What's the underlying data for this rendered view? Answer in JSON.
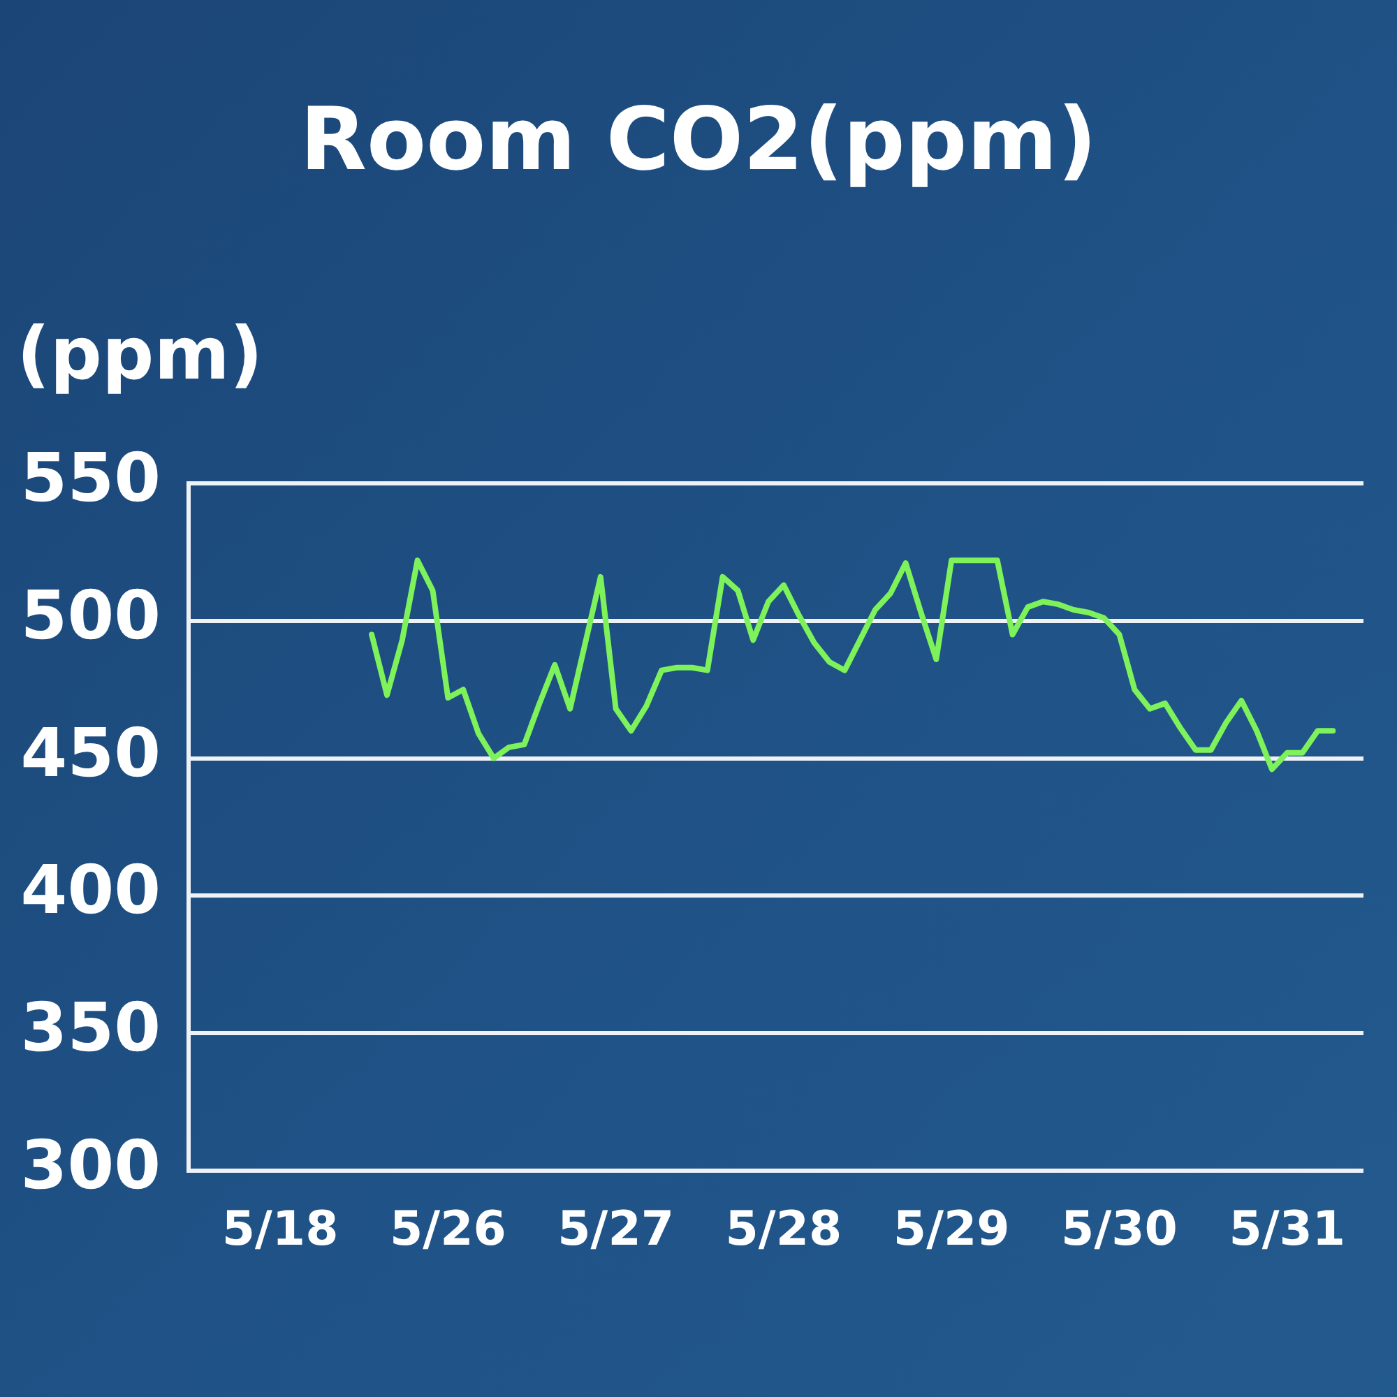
{
  "chart_data": {
    "type": "line",
    "title": "Room CO2(ppm)",
    "ylabel": "(ppm)",
    "categories": [
      null,
      null,
      null,
      null,
      null,
      null,
      "5/18",
      null,
      null,
      null,
      null,
      null,
      null,
      null,
      null,
      null,
      null,
      "5/26",
      null,
      null,
      null,
      null,
      null,
      null,
      null,
      null,
      null,
      null,
      "5/27",
      null,
      null,
      null,
      null,
      null,
      null,
      null,
      null,
      null,
      null,
      "5/28",
      null,
      null,
      null,
      null,
      null,
      null,
      null,
      null,
      null,
      null,
      "5/29",
      null,
      null,
      null,
      null,
      null,
      null,
      null,
      null,
      null,
      null,
      "5/30",
      null,
      null,
      null,
      null,
      null,
      null,
      null,
      null,
      null,
      null,
      "5/31",
      null,
      null,
      null,
      null,
      null
    ],
    "series": [
      {
        "color": "#7ef25a",
        "values": [
          null,
          null,
          null,
          null,
          null,
          null,
          null,
          null,
          null,
          null,
          null,
          null,
          495,
          473,
          493,
          522,
          511,
          472,
          475,
          459,
          450,
          454,
          455,
          470,
          484,
          468,
          492,
          516,
          468,
          460,
          469,
          482,
          483,
          483,
          482,
          516,
          511,
          493,
          507,
          513,
          502,
          492,
          485,
          482,
          493,
          504,
          510,
          521,
          503,
          486,
          522,
          522,
          522,
          522,
          495,
          505,
          507,
          506,
          504,
          503,
          501,
          495,
          475,
          468,
          470,
          461,
          453,
          453,
          463,
          471,
          460,
          446,
          452,
          452,
          460,
          460,
          null,
          null
        ]
      }
    ],
    "ylim": [
      300,
      550
    ],
    "yticks": [
      300,
      350,
      400,
      450,
      500,
      550
    ],
    "grid": "y",
    "line_style": "solid"
  }
}
